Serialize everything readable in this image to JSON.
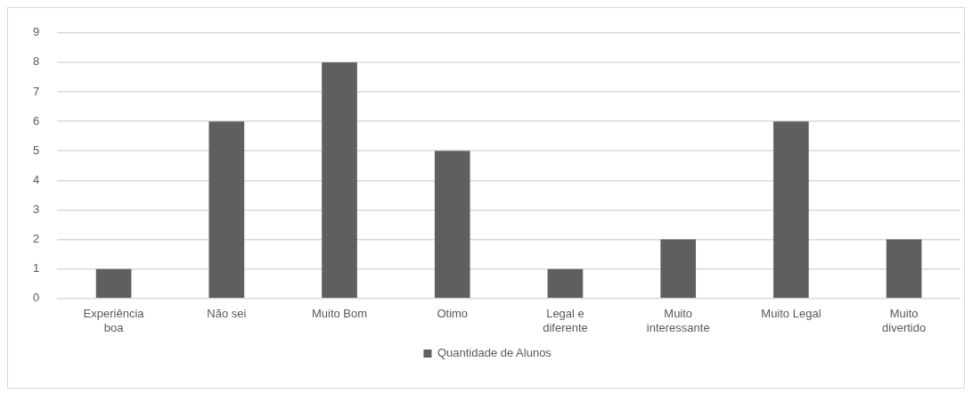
{
  "chart_data": {
    "type": "bar",
    "categories": [
      "Experiência boa",
      "Não sei",
      "Muito Bom",
      "Otimo",
      "Legal e diferente",
      "Muito interessante",
      "Muito Legal",
      "Muito divertido"
    ],
    "series": [
      {
        "name": "Quantidade de Alunos",
        "color": "#5f5f5f",
        "values": [
          1,
          6,
          8,
          5,
          1,
          2,
          6,
          2
        ]
      }
    ],
    "ylim": [
      0,
      9
    ],
    "yticks": [
      0,
      1,
      2,
      3,
      4,
      5,
      6,
      7,
      8,
      9
    ],
    "grid": "y",
    "legend": "bottom"
  }
}
